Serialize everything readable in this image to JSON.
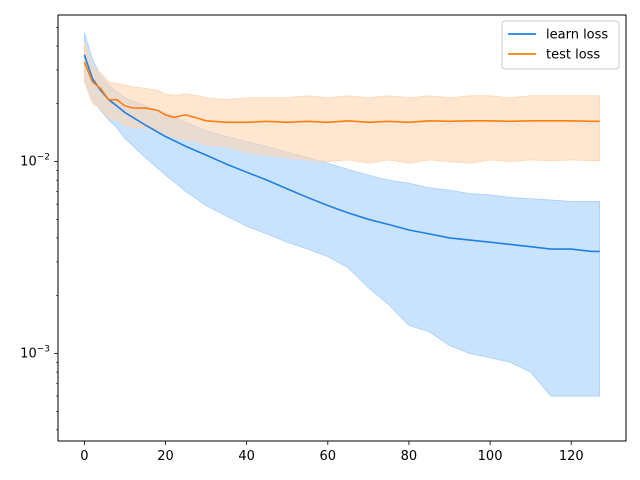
{
  "chart_data": {
    "type": "line",
    "title": "",
    "xlabel": "",
    "ylabel": "",
    "xscale": "linear",
    "yscale": "log",
    "xlim": [
      -6.5,
      133.5
    ],
    "ylim": [
      0.00035,
      0.058
    ],
    "x_ticks": [
      0,
      20,
      40,
      60,
      80,
      100,
      120
    ],
    "x_tick_labels": [
      "0",
      "20",
      "40",
      "60",
      "80",
      "100",
      "120"
    ],
    "y_major_ticks": [
      0.001,
      0.01
    ],
    "y_tick_labels": [
      "10^{-3}",
      "10^{-2}"
    ],
    "grid": false,
    "legend_position": "upper right",
    "series": [
      {
        "name": "learn loss",
        "color": "#1f7fe6",
        "band_color": "#a6d0fb",
        "x": [
          0,
          2,
          4,
          6,
          8,
          10,
          15,
          20,
          25,
          30,
          35,
          40,
          45,
          50,
          55,
          60,
          65,
          70,
          75,
          80,
          85,
          90,
          95,
          100,
          105,
          110,
          115,
          120,
          125,
          127
        ],
        "mean": [
          0.036,
          0.027,
          0.0235,
          0.021,
          0.0195,
          0.018,
          0.0155,
          0.0135,
          0.012,
          0.0108,
          0.0097,
          0.0088,
          0.008,
          0.0072,
          0.0065,
          0.0059,
          0.0054,
          0.005,
          0.0047,
          0.0044,
          0.0042,
          0.004,
          0.0039,
          0.0038,
          0.0037,
          0.0036,
          0.0035,
          0.0035,
          0.0034,
          0.0034
        ],
        "upper": [
          0.047,
          0.034,
          0.028,
          0.025,
          0.023,
          0.0215,
          0.0195,
          0.018,
          0.016,
          0.0145,
          0.0135,
          0.0127,
          0.012,
          0.0112,
          0.0105,
          0.0098,
          0.0091,
          0.0085,
          0.008,
          0.0077,
          0.0073,
          0.0071,
          0.0068,
          0.0067,
          0.0065,
          0.0064,
          0.0063,
          0.0062,
          0.0062,
          0.0062
        ],
        "lower": [
          0.027,
          0.021,
          0.0185,
          0.0165,
          0.015,
          0.0132,
          0.0105,
          0.0085,
          0.007,
          0.0059,
          0.0052,
          0.0046,
          0.0042,
          0.0038,
          0.0035,
          0.0032,
          0.0028,
          0.0022,
          0.0018,
          0.0014,
          0.0013,
          0.0011,
          0.001,
          0.00095,
          0.0009,
          0.0008,
          0.0006,
          0.0006,
          0.0006,
          0.0006
        ]
      },
      {
        "name": "test loss",
        "color": "#ff7f0e",
        "band_color": "#ffd6b3",
        "x": [
          0,
          2,
          4,
          6,
          8,
          10,
          12,
          15,
          18,
          20,
          22,
          25,
          28,
          30,
          35,
          40,
          45,
          50,
          55,
          60,
          65,
          70,
          75,
          80,
          85,
          90,
          95,
          100,
          105,
          110,
          115,
          120,
          125,
          127
        ],
        "mean": [
          0.033,
          0.026,
          0.024,
          0.021,
          0.021,
          0.0195,
          0.019,
          0.019,
          0.0185,
          0.0175,
          0.017,
          0.0175,
          0.0168,
          0.0163,
          0.016,
          0.016,
          0.0162,
          0.016,
          0.0162,
          0.016,
          0.0163,
          0.016,
          0.0162,
          0.016,
          0.0163,
          0.0162,
          0.0163,
          0.0163,
          0.0162,
          0.0163,
          0.0163,
          0.0163,
          0.0162,
          0.0162
        ],
        "upper": [
          0.042,
          0.031,
          0.029,
          0.026,
          0.0255,
          0.025,
          0.0245,
          0.024,
          0.0235,
          0.0225,
          0.022,
          0.0225,
          0.022,
          0.0215,
          0.021,
          0.0215,
          0.0215,
          0.0215,
          0.022,
          0.0215,
          0.022,
          0.0215,
          0.022,
          0.0215,
          0.022,
          0.0215,
          0.022,
          0.022,
          0.0215,
          0.022,
          0.022,
          0.022,
          0.022,
          0.022
        ],
        "lower": [
          0.026,
          0.02,
          0.019,
          0.0168,
          0.0165,
          0.0155,
          0.015,
          0.015,
          0.0145,
          0.014,
          0.0135,
          0.013,
          0.0127,
          0.0122,
          0.012,
          0.0112,
          0.0108,
          0.0105,
          0.0102,
          0.01,
          0.0102,
          0.0098,
          0.0102,
          0.0098,
          0.0102,
          0.01,
          0.0098,
          0.0102,
          0.01,
          0.0102,
          0.0101,
          0.0102,
          0.0101,
          0.0101
        ]
      }
    ]
  }
}
